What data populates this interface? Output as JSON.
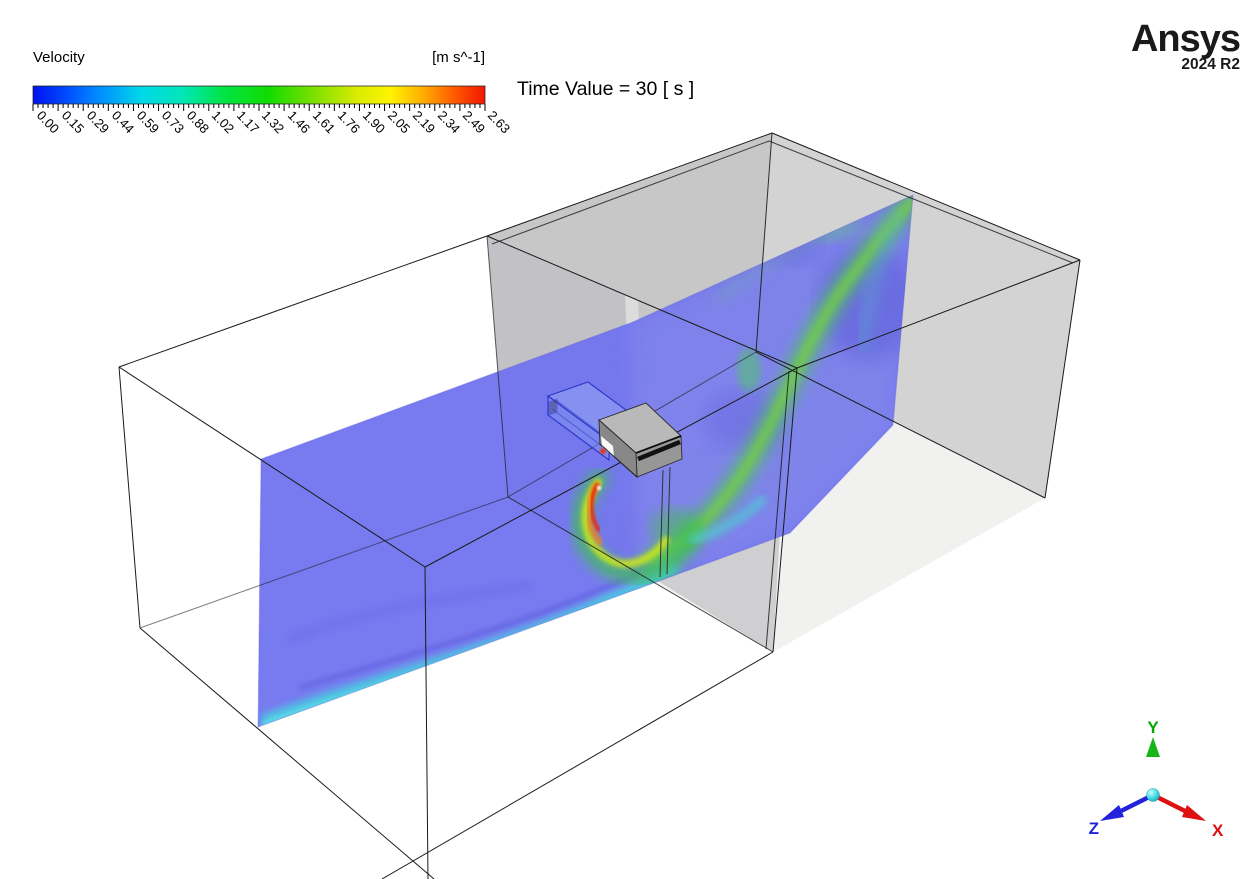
{
  "legend": {
    "title": "Velocity",
    "units": "[m s^-1]",
    "ticks": [
      "0.00",
      "0.15",
      "0.29",
      "0.44",
      "0.59",
      "0.73",
      "0.88",
      "1.02",
      "1.17",
      "1.32",
      "1.46",
      "1.61",
      "1.76",
      "1.90",
      "2.05",
      "2.19",
      "2.34",
      "2.49",
      "2.63"
    ],
    "colormap": [
      "#0012f0",
      "#0048ff",
      "#0090ff",
      "#00d8e8",
      "#00e6b8",
      "#00e448",
      "#10dc00",
      "#7ce000",
      "#dcec00",
      "#fdf400",
      "#ffb000",
      "#ff5c00",
      "#f31600"
    ],
    "colormap_offsets": [
      0,
      7,
      15,
      24,
      33,
      42,
      52,
      62,
      72,
      79,
      86,
      93,
      100
    ]
  },
  "annotation": {
    "time_label": "Time Value = 30 [ s ]"
  },
  "logo": {
    "brand": "Ansys",
    "release": "2024 R2"
  },
  "triad": {
    "x": {
      "label": "X",
      "color": "#dd1111"
    },
    "y": {
      "label": "Y",
      "color": "#00a800"
    },
    "z": {
      "label": "Z",
      "color": "#2222dd"
    }
  },
  "scene": {
    "description": "Two wireframe rooms connected by a door opening; a vertical velocity contour plane passes through both rooms; a wall-mounted air-conditioner unit blows a high-speed jet that curls to the floor and an S-shaped stream rises through the door into the second room.",
    "colors": {
      "plane_blue": "#7173ef",
      "floor_jet_cyan": "#49cede",
      "stream_green": "#53c164",
      "jet_yellow": "#c6e51e",
      "jet_red": "#e8290b",
      "back_wall_gray": "#c7c7c7",
      "right_wall_gray": "#d3d3d3",
      "floor_gray": "#f1f1ef",
      "ac_unit_gray": "#b9b9b9"
    }
  }
}
